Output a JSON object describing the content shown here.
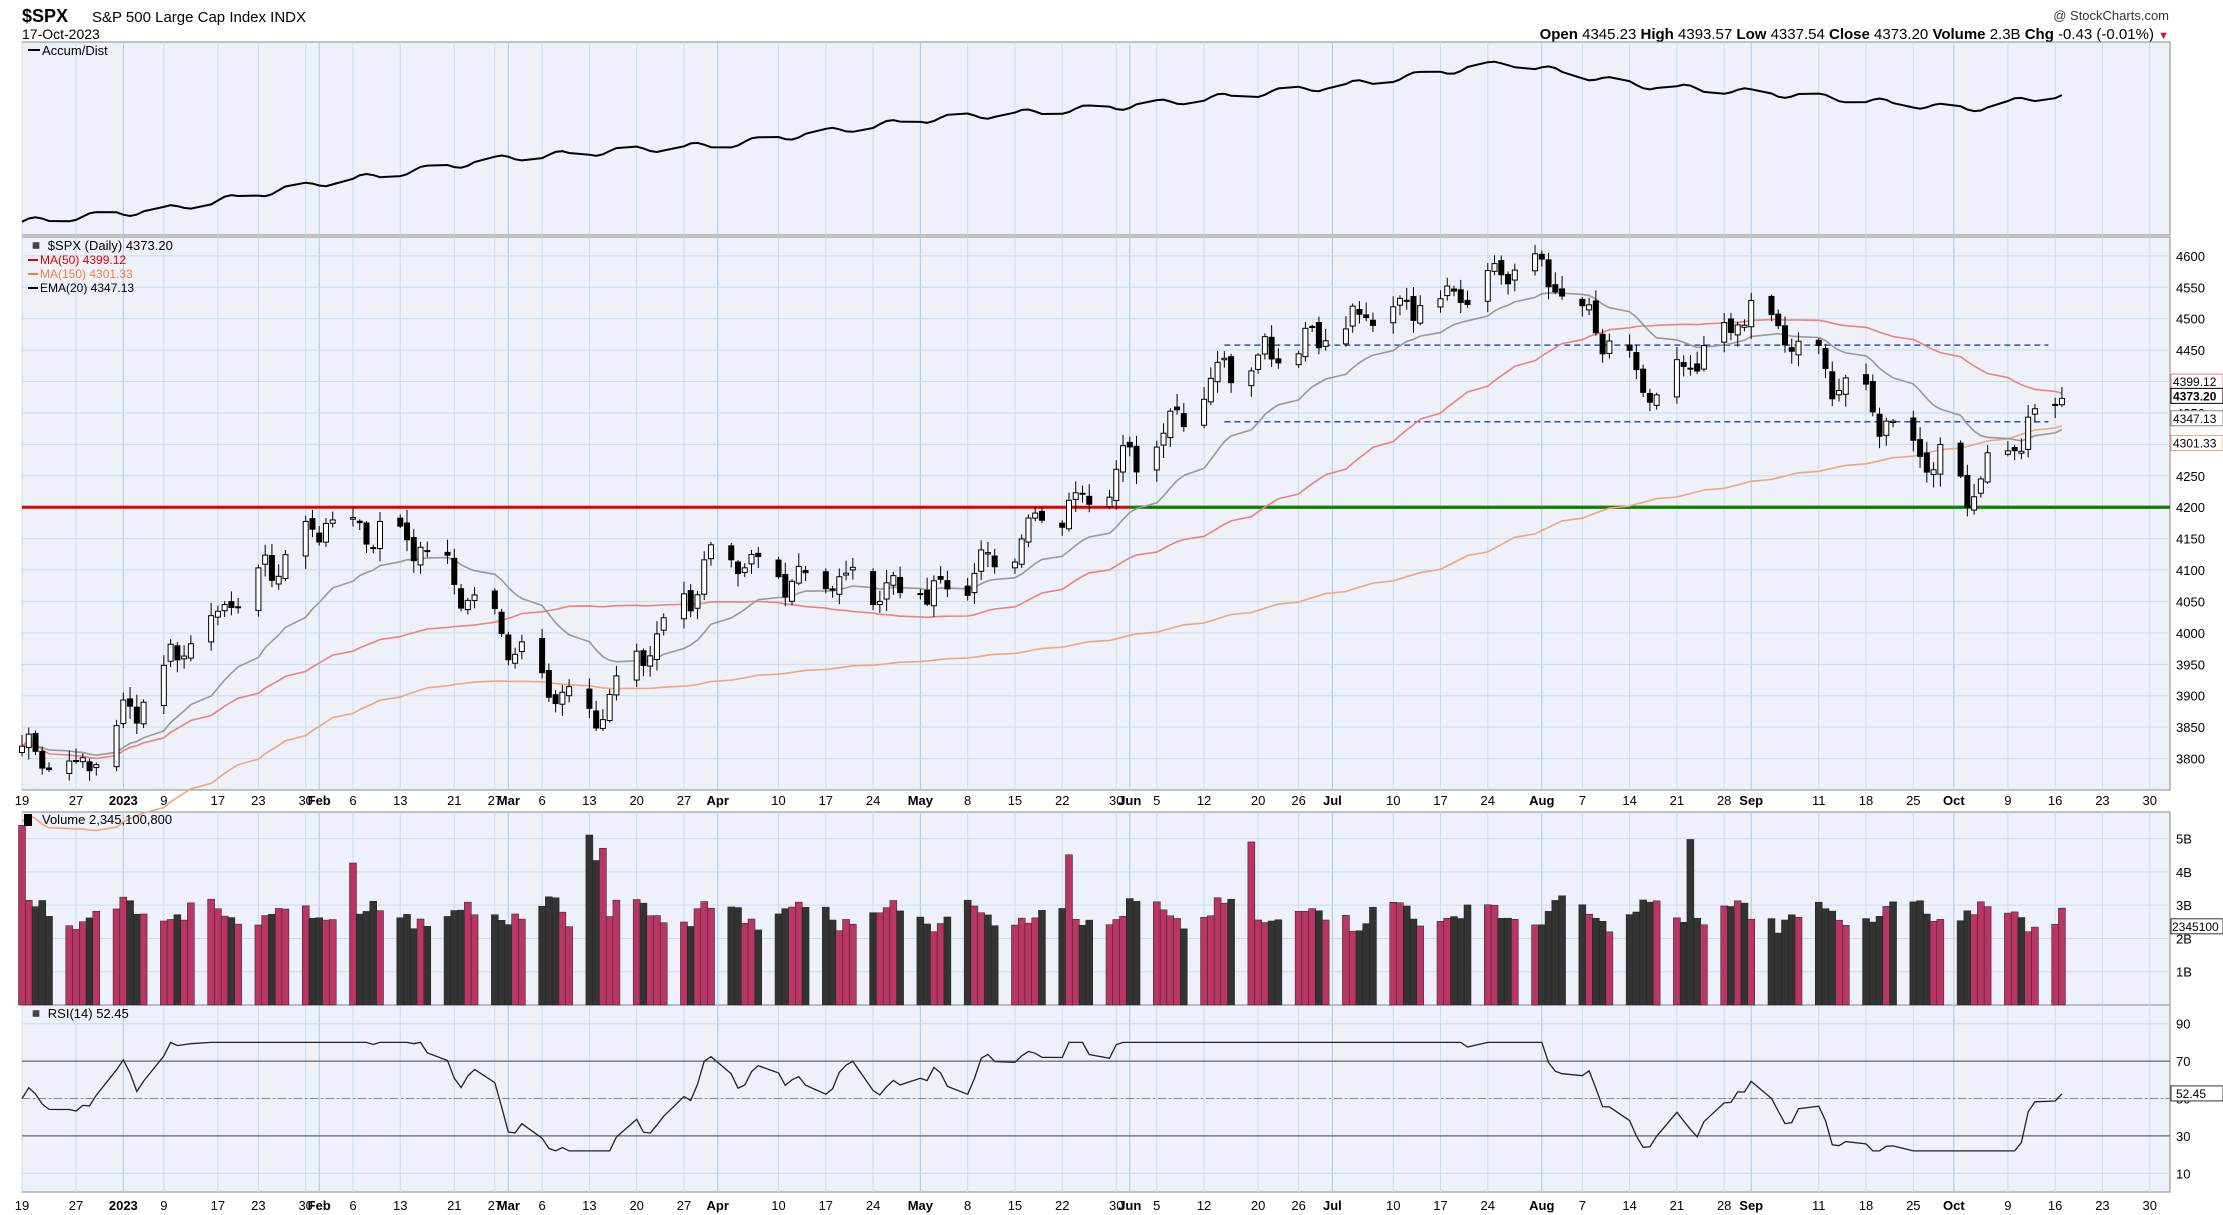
{
  "header": {
    "symbol": "$SPX",
    "name": "S&P 500 Large Cap Index  INDX",
    "date": "17-Oct-2023",
    "brand": "@ StockCharts.com",
    "open_label": "Open",
    "open": "4345.23",
    "high_label": "High",
    "high": "4393.57",
    "low_label": "Low",
    "low": "4337.54",
    "close_label": "Close",
    "close": "4373.20",
    "volume_label": "Volume",
    "volume": "2.3B",
    "chg_label": "Chg",
    "chg": "-0.43 (-0.01%)"
  },
  "colors": {
    "background": "#eef0fa",
    "grid": "#c8dcef",
    "up_candle": "#ffffff",
    "down_candle": "#000000",
    "ma50": "#f0807f",
    "ma150": "#f5a47a",
    "ema20": "#999999",
    "resistance": "#e00000",
    "support": "#008a00",
    "range_lines": "#3050c0",
    "volume_up": "#b83565",
    "volume_down": "#333333"
  },
  "chart_data": [
    {
      "type": "line",
      "panel": "Accum/Dist",
      "title": "Accum/Dist",
      "x": [
        "2022-12-19",
        "2023-01-09",
        "2023-02-01",
        "2023-03-01",
        "2023-04-03",
        "2023-05-01",
        "2023-06-01",
        "2023-07-03",
        "2023-07-27",
        "2023-08-15",
        "2023-09-01",
        "2023-09-15",
        "2023-10-03",
        "2023-10-17"
      ],
      "values": [
        0.03,
        0.1,
        0.25,
        0.4,
        0.48,
        0.62,
        0.7,
        0.82,
        0.95,
        0.82,
        0.78,
        0.74,
        0.68,
        0.77
      ]
    },
    {
      "type": "candlestick",
      "panel": "price",
      "title": "$SPX (Daily) 4373.20",
      "legend": [
        {
          "name": "MA(50) 4399.12",
          "color": "#e00000"
        },
        {
          "name": "MA(150) 4301.33",
          "color": "#f57f3f"
        },
        {
          "name": "EMA(20) 4347.13",
          "color": "#000000"
        }
      ],
      "ylim": [
        3750,
        4630
      ],
      "y_ticks": [
        3800,
        3850,
        3900,
        3950,
        4000,
        4050,
        4100,
        4150,
        4200,
        4250,
        4300,
        4350,
        4400,
        4450,
        4500,
        4550,
        4600
      ],
      "x_ticks": [
        "19",
        "27",
        "2023",
        "9",
        "17",
        "23",
        "30",
        "Feb",
        "6",
        "13",
        "21",
        "27",
        "Mar",
        "6",
        "13",
        "20",
        "27",
        "Apr",
        "10",
        "17",
        "24",
        "May",
        "8",
        "15",
        "22",
        "30",
        "Jun",
        "5",
        "12",
        "20",
        "26",
        "Jul",
        "10",
        "17",
        "24",
        "Aug",
        "7",
        "14",
        "21",
        "28",
        "Sep",
        "11",
        "18",
        "25",
        "Oct",
        "9",
        "16",
        "23",
        "30"
      ],
      "key_closes": [
        {
          "date": "2022-12-19",
          "close": 3820
        },
        {
          "date": "2022-12-28",
          "close": 3783
        },
        {
          "date": "2023-01-12",
          "close": 3983
        },
        {
          "date": "2023-02-02",
          "close": 4179
        },
        {
          "date": "2023-02-15",
          "close": 4148
        },
        {
          "date": "2023-03-13",
          "close": 3855
        },
        {
          "date": "2023-03-31",
          "close": 4109
        },
        {
          "date": "2023-05-04",
          "close": 4061
        },
        {
          "date": "2023-06-02",
          "close": 4282
        },
        {
          "date": "2023-06-15",
          "close": 4426
        },
        {
          "date": "2023-07-31",
          "close": 4589
        },
        {
          "date": "2023-08-18",
          "close": 4370
        },
        {
          "date": "2023-09-01",
          "close": 4515
        },
        {
          "date": "2023-10-03",
          "close": 4229
        },
        {
          "date": "2023-10-17",
          "close": 4373.2
        }
      ],
      "horizontal_lines": [
        {
          "name": "resistance",
          "y": 4200
        },
        {
          "name": "range-top",
          "y": 4458
        },
        {
          "name": "range-bottom",
          "y": 4336
        }
      ],
      "right_labels": [
        "4399.12",
        "4373.20",
        "4347.13",
        "4301.33"
      ]
    },
    {
      "type": "bar",
      "panel": "volume",
      "title": "Volume 2,345,100,800",
      "y_ticks": [
        "5B",
        "4B",
        "3B",
        "2B",
        "1B"
      ],
      "last_label": "2345100"
    },
    {
      "type": "line",
      "panel": "RSI",
      "title": "RSI(14) 52.45",
      "ylim": [
        0,
        100
      ],
      "y_ticks": [
        10,
        30,
        50,
        70,
        90
      ],
      "bands": [
        30,
        70
      ],
      "last_label": "52.45"
    }
  ]
}
